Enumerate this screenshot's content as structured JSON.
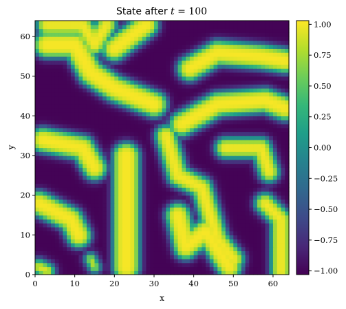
{
  "chart_data": {
    "type": "heatmap",
    "title_prefix": "State after ",
    "title_var": "t",
    "title_eq": " = 100",
    "xlabel": "x",
    "ylabel": "y",
    "xlim": [
      0,
      64
    ],
    "ylim": [
      0,
      64
    ],
    "x_ticks": [
      "0",
      "10",
      "20",
      "30",
      "40",
      "50",
      "60"
    ],
    "y_ticks": [
      "0",
      "10",
      "20",
      "30",
      "40",
      "50",
      "60"
    ],
    "colorbar": {
      "range": [
        -1.03,
        1.03
      ],
      "ticks": [
        -1.0,
        -0.75,
        -0.5,
        -0.25,
        0.0,
        0.25,
        0.5,
        0.75,
        1.0
      ],
      "tick_labels": [
        "−1.00",
        "−0.75",
        "−0.50",
        "−0.25",
        "0.00",
        "0.25",
        "0.50",
        "0.75",
        "1.00"
      ]
    },
    "colormap": "viridis",
    "grid": false,
    "high_value_regions": [
      {
        "shape": "capsule",
        "points": [
          [
            3,
            58
          ],
          [
            10,
            58
          ],
          [
            14,
            51
          ],
          [
            20,
            47
          ],
          [
            30,
            43
          ]
        ],
        "radius": 3.2
      },
      {
        "shape": "capsule",
        "points": [
          [
            3,
            63
          ],
          [
            12,
            63
          ],
          [
            15,
            58
          ],
          [
            18,
            63
          ]
        ],
        "radius": 2.5
      },
      {
        "shape": "capsule",
        "points": [
          [
            20,
            57
          ],
          [
            28,
            63
          ]
        ],
        "radius": 3.0
      },
      {
        "shape": "capsule",
        "points": [
          [
            2,
            34
          ],
          [
            12,
            32
          ],
          [
            15,
            27
          ]
        ],
        "radius": 3.0
      },
      {
        "shape": "capsule",
        "points": [
          [
            1,
            18
          ],
          [
            9,
            14
          ],
          [
            11,
            10
          ]
        ],
        "radius": 3.0
      },
      {
        "shape": "capsule",
        "points": [
          [
            23,
            2
          ],
          [
            23,
            30
          ]
        ],
        "radius": 3.3
      },
      {
        "shape": "capsule",
        "points": [
          [
            36,
            15
          ],
          [
            38,
            7
          ],
          [
            43,
            11
          ],
          [
            49,
            2
          ]
        ],
        "radius": 3.0
      },
      {
        "shape": "capsule",
        "points": [
          [
            33,
            35
          ],
          [
            36,
            25
          ],
          [
            42,
            22
          ],
          [
            46,
            9
          ],
          [
            50,
            4
          ]
        ],
        "radius": 2.6
      },
      {
        "shape": "capsule",
        "points": [
          [
            39,
            52
          ],
          [
            46,
            56
          ],
          [
            57,
            55
          ],
          [
            63,
            54
          ]
        ],
        "radius": 3.0
      },
      {
        "shape": "capsule",
        "points": [
          [
            37,
            38
          ],
          [
            46,
            43
          ],
          [
            58,
            44
          ],
          [
            63,
            42
          ]
        ],
        "radius": 3.0
      },
      {
        "shape": "capsule",
        "points": [
          [
            48,
            32
          ],
          [
            57,
            32
          ],
          [
            59,
            26
          ]
        ],
        "radius": 2.5
      },
      {
        "shape": "capsule",
        "points": [
          [
            58,
            18
          ],
          [
            62,
            14
          ],
          [
            62,
            1
          ]
        ],
        "radius": 2.5
      },
      {
        "shape": "capsule",
        "points": [
          [
            1,
            2
          ],
          [
            3,
            1
          ]
        ],
        "radius": 1.8
      },
      {
        "shape": "capsule",
        "points": [
          [
            14,
            4
          ],
          [
            15,
            2
          ]
        ],
        "radius": 1.3
      }
    ]
  }
}
